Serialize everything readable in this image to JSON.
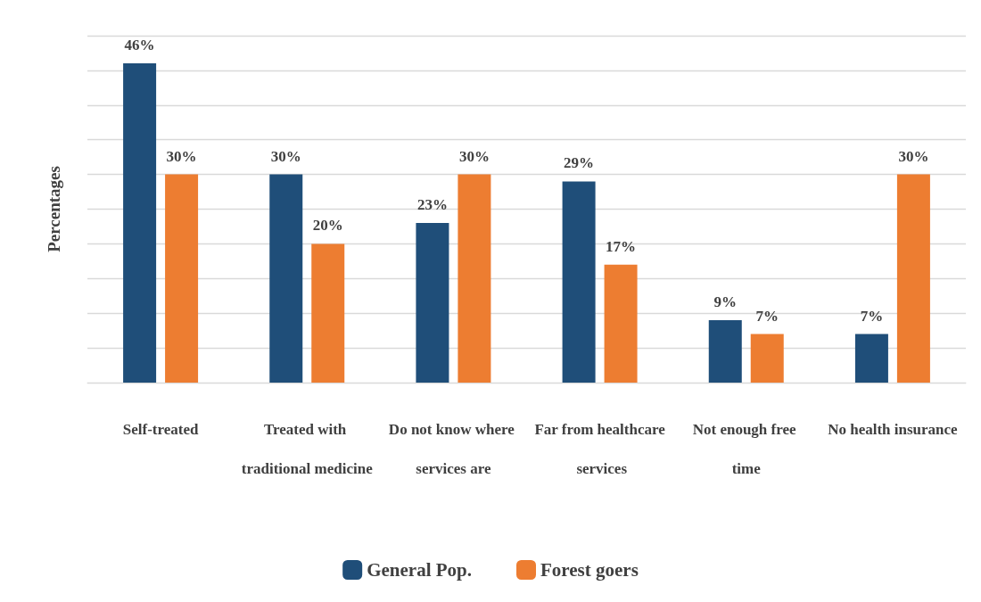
{
  "chart_data": {
    "type": "bar",
    "ylabel": "Percentages",
    "categories": [
      "Self-treated",
      "Treated with traditional medicine",
      "Do not know where services are",
      "Far from healthcare services",
      "Not enough free time",
      "No health insurance"
    ],
    "series": [
      {
        "name": "General Pop.",
        "color": "#1f4e79",
        "values": [
          46,
          30,
          23,
          29,
          9,
          7
        ],
        "value_labels": [
          "46%",
          "30%",
          "23%",
          "29%",
          "9%",
          "7%"
        ]
      },
      {
        "name": "Forest goers",
        "color": "#ed7d31",
        "values": [
          30,
          20,
          30,
          17,
          7,
          30
        ],
        "value_labels": [
          "30%",
          "20%",
          "30%",
          "17%",
          "7%",
          "30%"
        ]
      }
    ],
    "ylim": [
      0,
      50
    ],
    "yticks": [
      {
        "value": 0,
        "label": null
      },
      {
        "value": 5,
        "label": null
      },
      {
        "value": 10,
        "label": null
      },
      {
        "value": 15,
        "label": null
      },
      {
        "value": 20,
        "label": null
      },
      {
        "value": 25,
        "label": null
      },
      {
        "value": 30,
        "label": null
      },
      {
        "value": 35,
        "label": null
      },
      {
        "value": 40,
        "label": null
      },
      {
        "value": 45,
        "label": null
      },
      {
        "value": 50,
        "label": null
      }
    ],
    "grid": "y",
    "legend": "bottom",
    "tick_labels": "x"
  }
}
